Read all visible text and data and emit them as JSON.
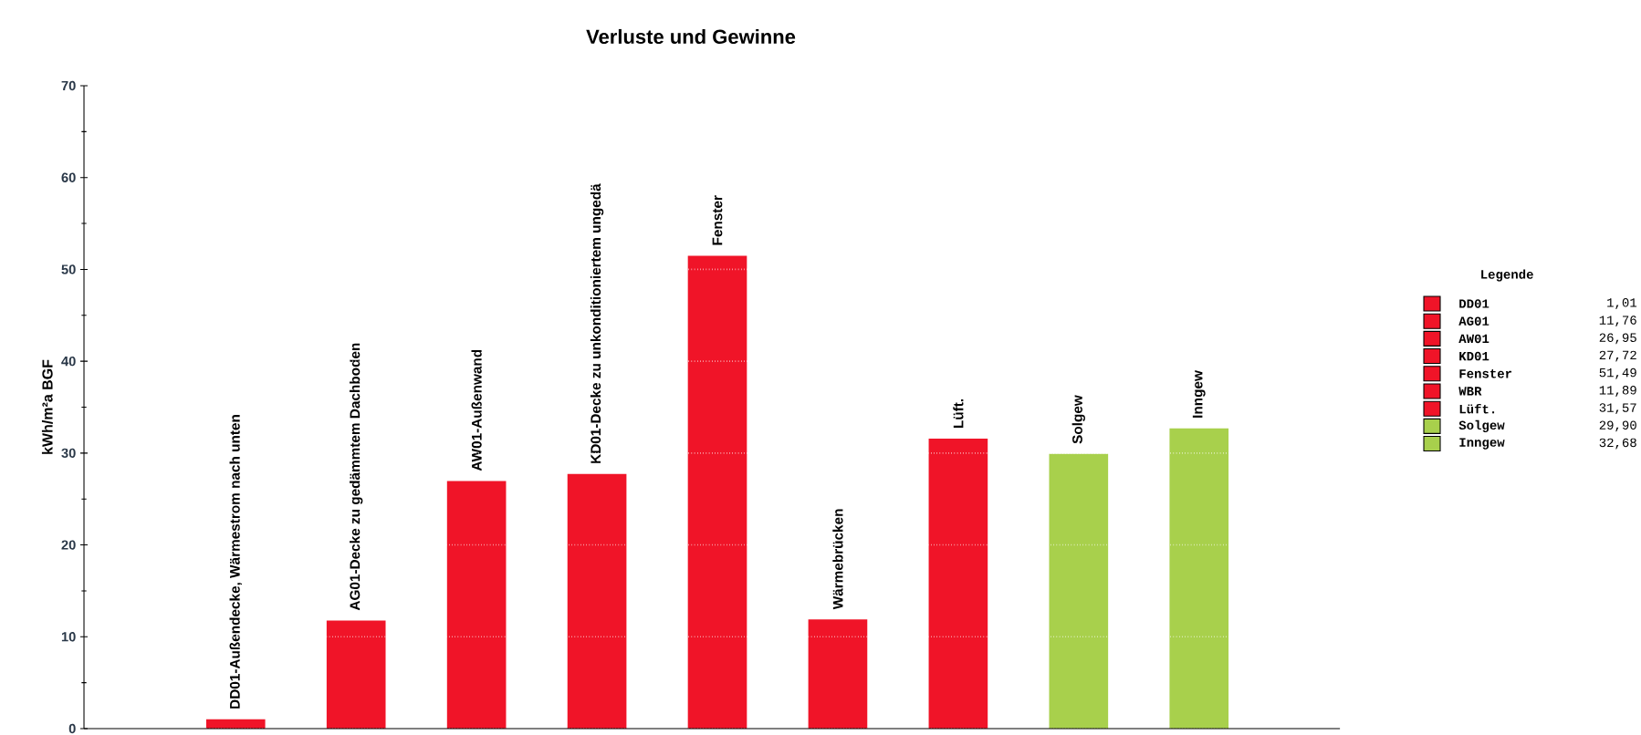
{
  "chart_data": {
    "type": "bar",
    "title": "Verluste und Gewinne",
    "ylabel": "kWh/m²a BGF",
    "legend_title": "Legende",
    "categories": [
      "DD01-Außendecke, Wärmestrom nach unten",
      "AG01-Decke zu gedämmtem Dachboden",
      "AW01-Außenwand",
      "KD01-Decke zu unkonditioniertem ungedä",
      "Fenster",
      "Wärmebrücken",
      "Lüft.",
      "Solgew",
      "Inngew"
    ],
    "series": [
      {
        "name": "DD01",
        "color": "#f01428",
        "values": [
          1.01,
          null,
          null,
          null,
          null,
          null,
          null,
          null,
          null
        ]
      },
      {
        "name": "AG01",
        "color": "#f01428",
        "values": [
          null,
          11.76,
          null,
          null,
          null,
          null,
          null,
          null,
          null
        ]
      },
      {
        "name": "AW01",
        "color": "#f01428",
        "values": [
          null,
          null,
          26.95,
          null,
          null,
          null,
          null,
          null,
          null
        ]
      },
      {
        "name": "KD01",
        "color": "#f01428",
        "values": [
          null,
          null,
          null,
          27.72,
          null,
          null,
          null,
          null,
          null
        ]
      },
      {
        "name": "Fenster",
        "color": "#f01428",
        "values": [
          null,
          null,
          null,
          null,
          51.49,
          null,
          null,
          null,
          null
        ]
      },
      {
        "name": "WBR",
        "color": "#f01428",
        "values": [
          null,
          null,
          null,
          null,
          null,
          11.89,
          null,
          null,
          null
        ]
      },
      {
        "name": "Lüft.",
        "color": "#f01428",
        "values": [
          null,
          null,
          null,
          null,
          null,
          null,
          31.57,
          null,
          null
        ]
      },
      {
        "name": "Solgew",
        "color": "#a8d04c",
        "values": [
          null,
          null,
          null,
          null,
          null,
          null,
          null,
          29.9,
          null
        ]
      },
      {
        "name": "Inngew",
        "color": "#a8d04c",
        "values": [
          null,
          null,
          null,
          null,
          null,
          null,
          null,
          null,
          32.68
        ]
      }
    ],
    "annotations": [
      "1,01",
      "11,76",
      "26,95",
      "27,72",
      "51,49",
      "11,89",
      "31,57",
      "29,90",
      "32,68"
    ],
    "ylim": [
      0,
      70
    ],
    "yticks": [
      0,
      10,
      20,
      30,
      40,
      50,
      60,
      70
    ],
    "grid": "y",
    "legend": "right"
  }
}
